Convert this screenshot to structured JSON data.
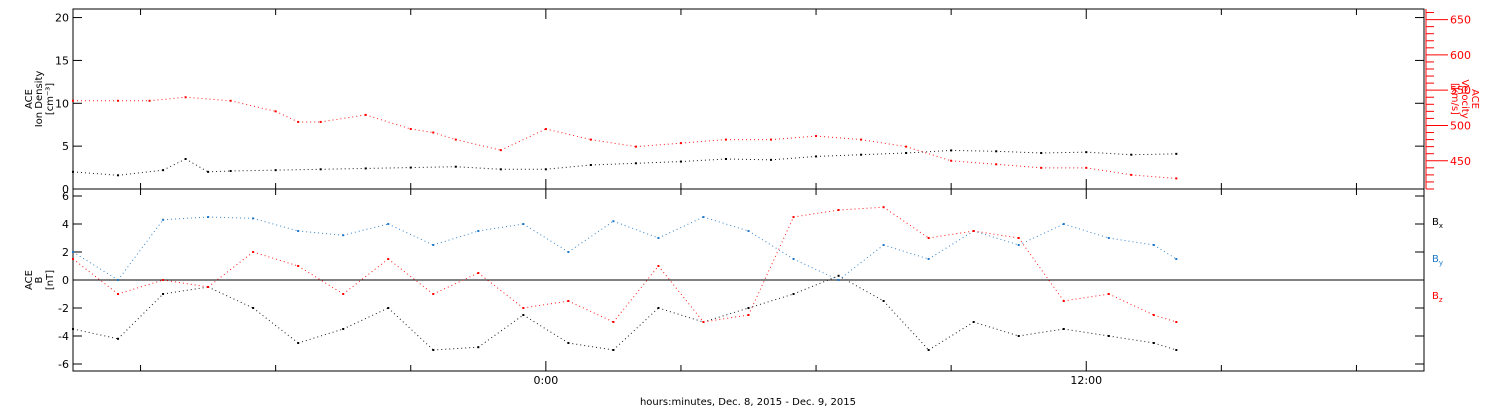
{
  "chart_data": [
    {
      "type": "scatter",
      "panel": "top",
      "ylabel_left": [
        "ACE",
        "Ion Density",
        "[cm⁻³]"
      ],
      "ylabel_right": [
        "ACE",
        "Velocity",
        "[km/s]"
      ],
      "ylim_left": [
        0,
        21
      ],
      "yticks_left": [
        "0",
        "5",
        "10",
        "15",
        "20"
      ],
      "ylim_right": [
        410,
        665
      ],
      "yticks_right": [
        "450",
        "500",
        "550",
        "600",
        "650"
      ],
      "series": [
        {
          "axis": "left",
          "color": "#000000",
          "x": [
            -10.5,
            -9.5,
            -8.5,
            -8,
            -7.5,
            -7,
            -6,
            -5,
            -4,
            -3,
            -2,
            -1,
            0,
            1,
            2,
            3,
            4,
            5,
            6,
            7,
            8,
            9,
            10,
            11,
            12,
            13,
            14
          ],
          "values": [
            2,
            1.6,
            2.2,
            3.5,
            2,
            2.1,
            2.2,
            2.3,
            2.4,
            2.5,
            2.6,
            2.3,
            2.3,
            2.8,
            3,
            3.2,
            3.5,
            3.4,
            3.8,
            4,
            4.2,
            4.5,
            4.4,
            4.2,
            4.3,
            4,
            4.1
          ]
        },
        {
          "axis": "right",
          "color": "#ff0000",
          "x": [
            -10.5,
            -9.5,
            -8.8,
            -8,
            -7,
            -6,
            -5.5,
            -5,
            -4,
            -3,
            -2.5,
            -2,
            -1,
            0,
            1,
            2,
            3,
            4,
            5,
            6,
            7,
            8,
            9,
            10,
            11,
            12,
            13,
            14
          ],
          "values": [
            535,
            535,
            535,
            540,
            535,
            520,
            505,
            505,
            515,
            495,
            490,
            480,
            465,
            495,
            480,
            470,
            475,
            480,
            480,
            485,
            480,
            470,
            450,
            445,
            440,
            440,
            430,
            425
          ]
        }
      ]
    },
    {
      "type": "scatter",
      "panel": "bottom",
      "ylabel_left": [
        "ACE",
        "B",
        "[nT]"
      ],
      "ylim": [
        -6.5,
        6.5
      ],
      "yticks": [
        "-6",
        "-4",
        "-2",
        "0",
        "2",
        "4",
        "6"
      ],
      "xlim": [
        -10.5,
        19.5
      ],
      "xticks": [
        "0:00",
        "12:00"
      ],
      "xlabel": "hours:minutes, Dec.  8, 2015 - Dec.  9, 2015",
      "series": [
        {
          "name": "Bx",
          "color": "#000000",
          "x": [
            -10.5,
            -9.5,
            -8.5,
            -7.5,
            -6.5,
            -5.5,
            -4.5,
            -3.5,
            -2.5,
            -1.5,
            -0.5,
            0.5,
            1.5,
            2.5,
            3.5,
            4.5,
            5.5,
            6.5,
            7.5,
            8.5,
            9.5,
            10.5,
            11.5,
            12.5,
            13.5,
            14
          ],
          "values": [
            -3.5,
            -4.2,
            -1,
            -0.5,
            -2,
            -4.5,
            -3.5,
            -2,
            -5,
            -4.8,
            -2.5,
            -4.5,
            -5,
            -2,
            -3,
            -2,
            -1,
            0.3,
            -1.5,
            -5,
            -3,
            -4,
            -3.5,
            -4,
            -4.5,
            -5
          ]
        },
        {
          "name": "By",
          "color": "#1f78c8",
          "x": [
            -10.5,
            -9.5,
            -8.5,
            -7.5,
            -6.5,
            -5.5,
            -4.5,
            -3.5,
            -2.5,
            -1.5,
            -0.5,
            0.5,
            1.5,
            2.5,
            3.5,
            4.5,
            5.5,
            6.5,
            7.5,
            8.5,
            9.5,
            10.5,
            11.5,
            12.5,
            13.5,
            14
          ],
          "values": [
            2,
            0,
            4.3,
            4.5,
            4.4,
            3.5,
            3.2,
            4,
            2.5,
            3.5,
            4,
            2,
            4.2,
            3,
            4.5,
            3.5,
            1.5,
            0,
            2.5,
            1.5,
            3.5,
            2.5,
            4,
            3,
            2.5,
            1.5
          ]
        },
        {
          "name": "Bz",
          "color": "#ff0000",
          "x": [
            -10.5,
            -9.5,
            -8.5,
            -7.5,
            -6.5,
            -5.5,
            -4.5,
            -3.5,
            -2.5,
            -1.5,
            -0.5,
            0.5,
            1.5,
            2.5,
            3.5,
            4.5,
            5.5,
            6.5,
            7.5,
            8.5,
            9.5,
            10.5,
            11.5,
            12.5,
            13.5,
            14
          ],
          "values": [
            1.5,
            -1,
            0,
            -0.5,
            2,
            1,
            -1,
            1.5,
            -1,
            0.5,
            -2,
            -1.5,
            -3,
            1,
            -3,
            -2.5,
            4.5,
            5,
            5.2,
            3,
            3.5,
            3,
            -1.5,
            -1,
            -2.5,
            -3
          ]
        }
      ],
      "legend": [
        "B",
        "B",
        "B"
      ],
      "legend_subscripts": [
        "x",
        "y",
        "z"
      ],
      "legend_placement": "right"
    }
  ]
}
